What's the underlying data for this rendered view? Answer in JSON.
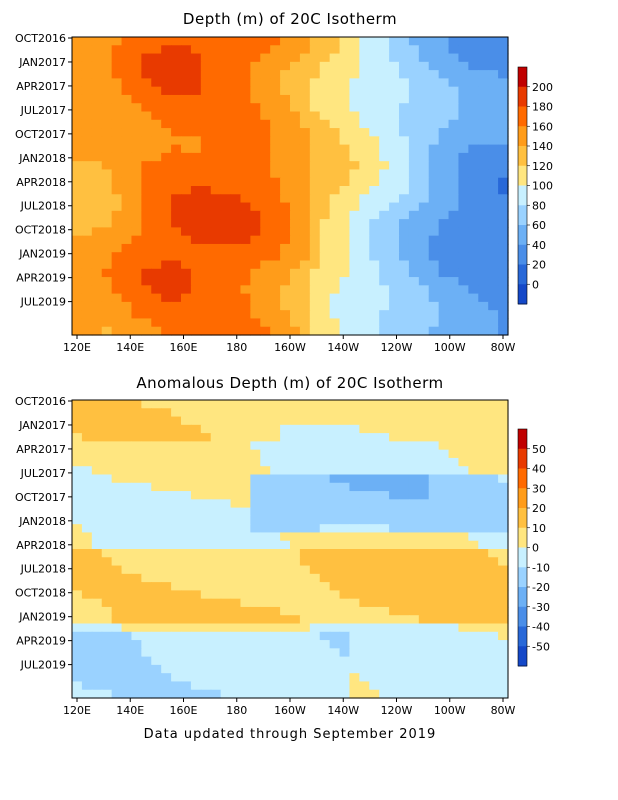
{
  "chart_data": [
    {
      "type": "heatmap",
      "title": "Depth (m) of 20C Isotherm",
      "y_tick_labels": [
        "OCT2016",
        "JAN2017",
        "APR2017",
        "JUL2017",
        "OCT2017",
        "JAN2018",
        "APR2018",
        "JUL2018",
        "OCT2018",
        "JAN2019",
        "APR2019",
        "JUL2019"
      ],
      "x_tick_labels": [
        "120E",
        "140E",
        "160E",
        "180",
        "160W",
        "140W",
        "120W",
        "100W",
        "80W"
      ],
      "colorbar": {
        "ticks": [
          "200",
          "180",
          "160",
          "140",
          "120",
          "100",
          "80",
          "60",
          "40",
          "20",
          "0"
        ],
        "colors": [
          "#c00000",
          "#e83a00",
          "#ff6a00",
          "#ff9c1a",
          "#ffc040",
          "#ffe680",
          "#c8f0ff",
          "#9ad2ff",
          "#6cb0f5",
          "#4a8ee8",
          "#2868d8",
          "#1448c8"
        ]
      },
      "longitude_profile_depth_m": [
        140,
        145,
        165,
        175,
        175,
        172,
        160,
        140,
        120,
        100,
        80,
        60,
        45,
        40
      ],
      "grid": false
    },
    {
      "type": "heatmap",
      "title": "Anomalous Depth (m) of 20C Isotherm",
      "y_tick_labels": [
        "OCT2016",
        "JAN2017",
        "APR2017",
        "JUL2017",
        "OCT2017",
        "JAN2018",
        "APR2018",
        "JUL2018",
        "OCT2018",
        "JAN2019",
        "APR2019",
        "JUL2019"
      ],
      "x_tick_labels": [
        "120E",
        "140E",
        "160E",
        "180",
        "160W",
        "140W",
        "120W",
        "100W",
        "80W"
      ],
      "colorbar": {
        "ticks": [
          "50",
          "40",
          "30",
          "20",
          "10",
          "0",
          "-10",
          "-20",
          "-30",
          "-40",
          "-50"
        ],
        "colors": [
          "#c00000",
          "#e83a00",
          "#ff6a00",
          "#ff9c1a",
          "#ffc040",
          "#ffe680",
          "#c8f0ff",
          "#9ad2ff",
          "#6cb0f5",
          "#4a8ee8",
          "#2868d8",
          "#1448c8"
        ]
      },
      "grid": false
    }
  ],
  "footer": "Data updated through September 2019"
}
